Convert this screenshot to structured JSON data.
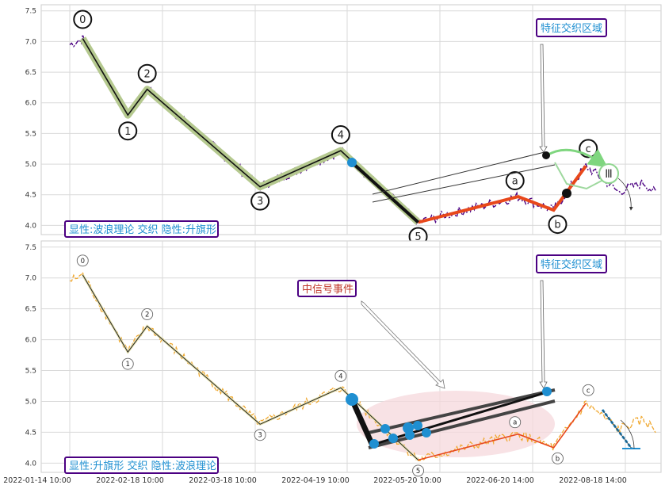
{
  "chart_data": [
    {
      "type": "line",
      "ylim": [
        3.85,
        7.6
      ],
      "yticks": [
        4.0,
        4.5,
        5.0,
        5.5,
        6.0,
        6.5,
        7.0,
        7.5
      ],
      "grid": true,
      "colors": {
        "price": "#4b0082",
        "wave_main": "#111111",
        "wave_glow": "#b5c98f",
        "wave_abc": "#e8481b",
        "marker": "#1f8fd1",
        "box_border": "#4b0082",
        "box_text": "#1f8fd1"
      },
      "bottom_label": "显性:波浪理论 交织 隐性:升旗形",
      "region_label": "特征交织区域",
      "wave_points": [
        {
          "label": "0",
          "x": 4,
          "y": 7.05
        },
        {
          "label": "1",
          "x": 18,
          "y": 5.8
        },
        {
          "label": "2",
          "x": 24,
          "y": 6.22
        },
        {
          "label": "3",
          "x": 59,
          "y": 4.63
        },
        {
          "label": "4",
          "x": 84,
          "y": 5.22
        },
        {
          "label": "5",
          "x": 108,
          "y": 4.05
        },
        {
          "label": "a",
          "x": 139,
          "y": 4.47
        },
        {
          "label": "b",
          "x": 150,
          "y": 4.25
        },
        {
          "label": "c",
          "x": 160,
          "y": 4.97
        }
      ]
    },
    {
      "type": "line",
      "ylim": [
        3.85,
        7.6
      ],
      "yticks": [
        4.0,
        4.5,
        5.0,
        5.5,
        6.0,
        6.5,
        7.0,
        7.5
      ],
      "grid": true,
      "colors": {
        "price": "#f0a830",
        "wave_main": "#222222",
        "wave_abc": "#e8481b",
        "marker": "#1f8fd1",
        "ellipse": "#f6d8dc",
        "box_border": "#4b0082",
        "box_text": "#1f8fd1",
        "signal_text": "#c0392b"
      },
      "bottom_label": "显性:升旗形 交织 隐性:波浪理论",
      "region_label": "特征交织区域",
      "signal_label": "中信号事件",
      "wave_points": [
        {
          "label": "0",
          "x": 4,
          "y": 7.05
        },
        {
          "label": "1",
          "x": 18,
          "y": 5.8
        },
        {
          "label": "2",
          "x": 24,
          "y": 6.22
        },
        {
          "label": "3",
          "x": 59,
          "y": 4.63
        },
        {
          "label": "4",
          "x": 84,
          "y": 5.22
        },
        {
          "label": "5",
          "x": 108,
          "y": 4.05
        },
        {
          "label": "a",
          "x": 139,
          "y": 4.47
        },
        {
          "label": "b",
          "x": 150,
          "y": 4.25
        },
        {
          "label": "c",
          "x": 160,
          "y": 4.97
        }
      ],
      "x_tick_labels": [
        "2022-01-14 10:00",
        "2022-02-18 10:00",
        "2022-03-18 10:00",
        "2022-04-19 10:00",
        "2022-05-20 10:00",
        "2022-06-20 14:00",
        "2022-08-18 14:00"
      ]
    }
  ]
}
